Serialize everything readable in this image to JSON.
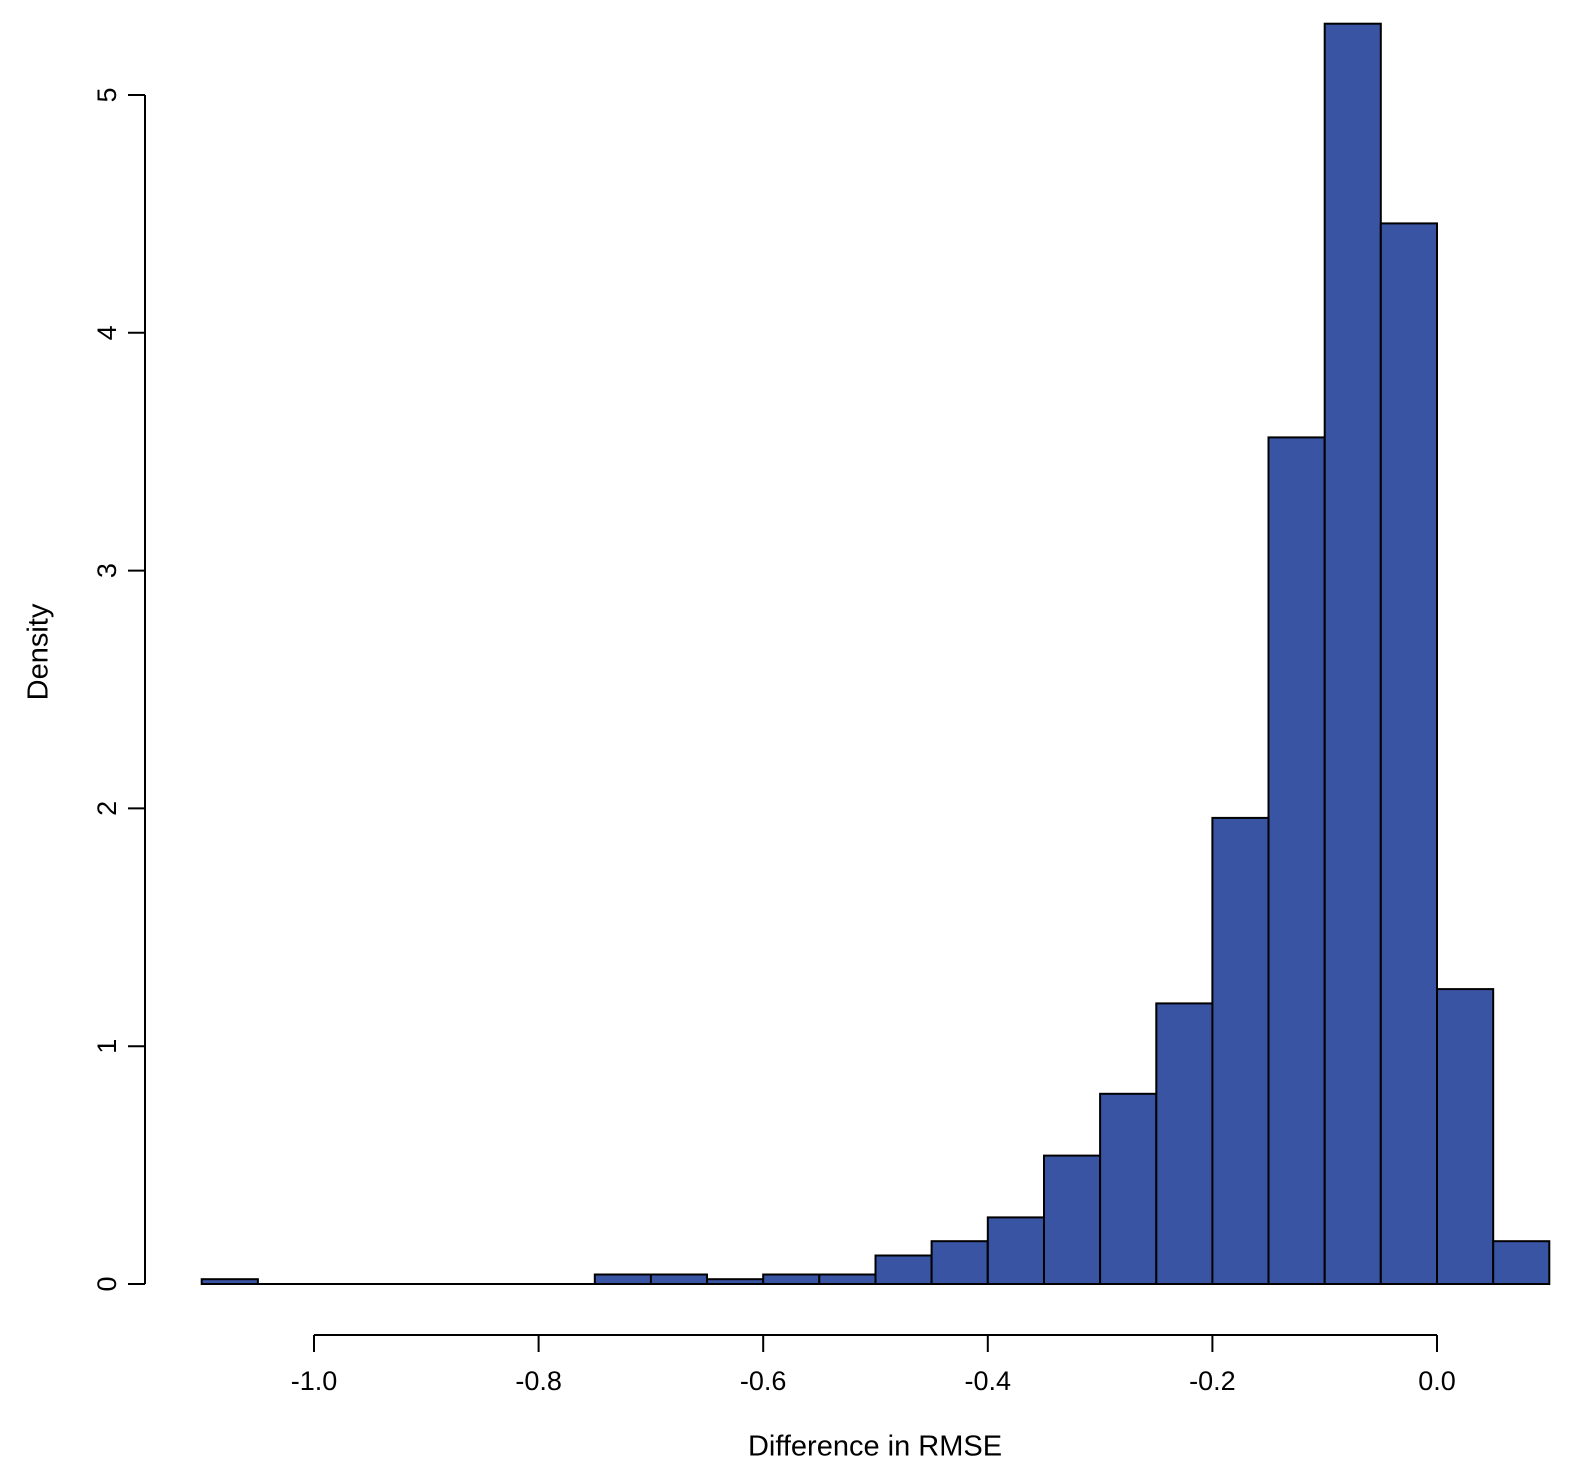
{
  "chart_data": {
    "type": "bar",
    "subtype": "histogram",
    "title": "",
    "xlabel": "Difference in RMSE",
    "ylabel": "Density",
    "grid": "off",
    "legend": "none",
    "bar_fill": "#3A54A4",
    "bar_stroke": "#000000",
    "axis_color": "#000000",
    "background": "#ffffff",
    "bin_width": 0.05,
    "bin_edges": [
      -1.1,
      -1.05,
      -1.0,
      -0.95,
      -0.9,
      -0.85,
      -0.8,
      -0.75,
      -0.7,
      -0.65,
      -0.6,
      -0.55,
      -0.5,
      -0.45,
      -0.4,
      -0.35,
      -0.3,
      -0.25,
      -0.2,
      -0.15,
      -0.1,
      -0.05,
      0.0,
      0.05,
      0.1
    ],
    "densities": [
      0.02,
      0,
      0,
      0,
      0,
      0,
      0,
      0.04,
      0.04,
      0.02,
      0.04,
      0.04,
      0.12,
      0.18,
      0.28,
      0.54,
      0.8,
      1.18,
      1.96,
      3.56,
      5.3,
      4.46,
      1.24,
      0.18
    ],
    "x_ticks": {
      "values": [
        -1.0,
        -0.8,
        -0.6,
        -0.4,
        -0.2,
        0.0
      ],
      "labels": [
        "-1.0",
        "-0.8",
        "-0.6",
        "-0.4",
        "-0.2",
        "0.0"
      ]
    },
    "y_ticks": {
      "values": [
        0,
        1,
        2,
        3,
        4,
        5
      ],
      "labels": [
        "0",
        "1",
        "2",
        "3",
        "4",
        "5"
      ]
    },
    "xlim": [
      -1.1,
      0.1
    ],
    "ylim": [
      0,
      5.3
    ]
  }
}
